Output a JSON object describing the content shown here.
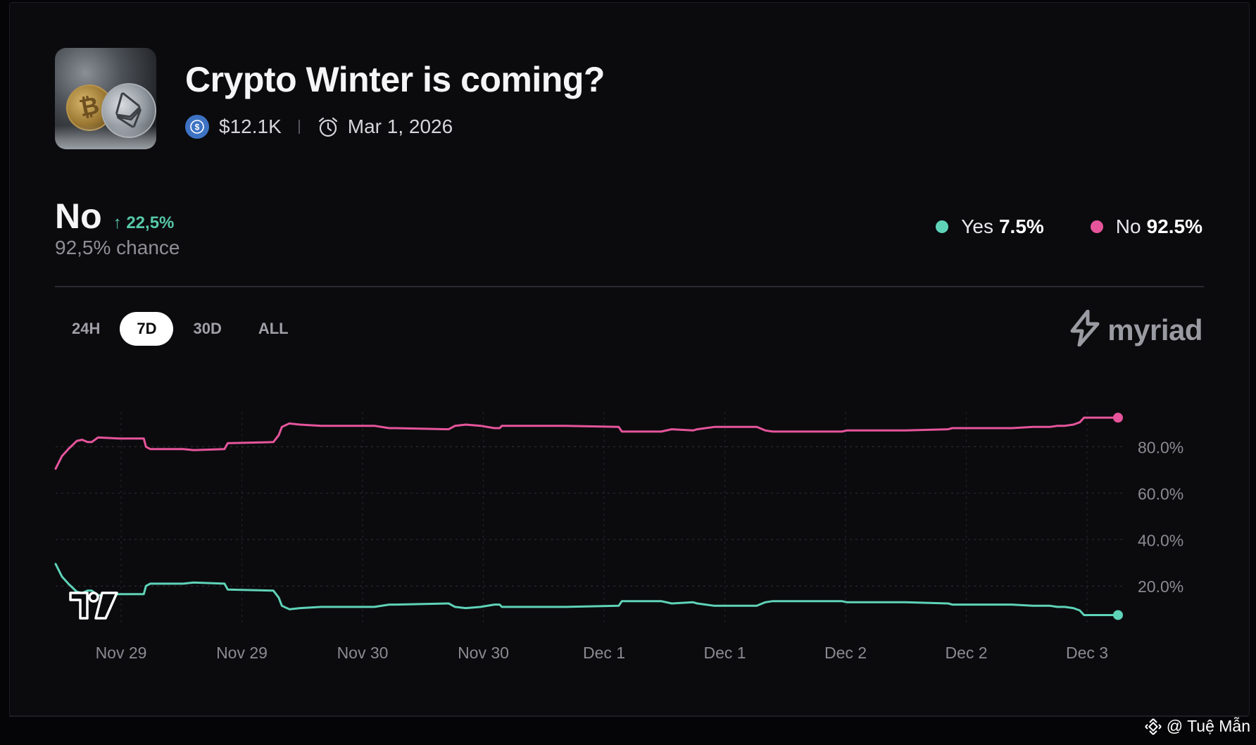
{
  "market": {
    "title": "Crypto Winter is coming?",
    "volume": "$12.1K",
    "end_date": "Mar 1, 2026",
    "thumbnail_icon": "crypto-coins-image"
  },
  "outcome": {
    "name": "No",
    "change": "22,5%",
    "chance": "92,5% chance"
  },
  "legend": [
    {
      "label": "Yes",
      "value": "7.5%",
      "color": "#5fd3b8"
    },
    {
      "label": "No",
      "value": "92.5%",
      "color": "#e6559c"
    }
  ],
  "ranges": [
    "24H",
    "7D",
    "30D",
    "ALL"
  ],
  "active_range": "7D",
  "brand": "myriad",
  "watermark": "@ Tuệ Mẫn",
  "colors": {
    "yes": "#5fd3b8",
    "no": "#e6559c",
    "up": "#56c7a7",
    "background": "#0b0b0e"
  },
  "chart_data": {
    "type": "line",
    "x_tick_labels": [
      "Nov 29",
      "Nov 29",
      "Nov 30",
      "Nov 30",
      "Dec 1",
      "Dec 1",
      "Dec 2",
      "Dec 2",
      "Dec 3"
    ],
    "y_tick_labels": [
      "20.0%",
      "40.0%",
      "60.0%",
      "80.0%"
    ],
    "y_ticks": [
      20,
      40,
      60,
      80
    ],
    "ylim": [
      0,
      100
    ],
    "xlim": [
      0,
      100
    ],
    "grid": true,
    "series": [
      {
        "name": "No",
        "color": "#e6559c",
        "x": [
          0,
          0.6,
          1.2,
          2,
          2.5,
          3,
          3.4,
          4,
          6,
          8.3,
          8.5,
          8.9,
          12,
          13,
          15.9,
          16.2,
          20.5,
          21,
          21.3,
          22,
          23,
          25,
          30,
          31.4,
          32,
          37,
          37.6,
          38.6,
          40,
          41.3,
          41.8,
          42,
          45,
          48,
          53,
          53.3,
          53.8,
          57,
          58,
          60,
          60.4,
          62,
          64,
          66,
          66.8,
          67.5,
          70,
          74,
          74.5,
          75,
          80,
          84,
          84.4,
          88,
          90,
          92,
          93.6,
          94.3,
          95,
          95.8,
          96.4,
          96.8,
          98,
          100
        ],
        "y": [
          70.5,
          76,
          79,
          82.5,
          83,
          82,
          82,
          84,
          83.5,
          83.5,
          80,
          79,
          79,
          78.5,
          79,
          81.5,
          82,
          85,
          88.5,
          90,
          89.5,
          89,
          89,
          88,
          88,
          87.5,
          89,
          89.5,
          89,
          88,
          88,
          89,
          89,
          89,
          88.5,
          86.5,
          86.5,
          86.5,
          87.5,
          87,
          87.5,
          88.5,
          88.5,
          88.5,
          87,
          86.5,
          86.5,
          86.5,
          87,
          87,
          87,
          87.5,
          88,
          88,
          88,
          88.5,
          88.5,
          89,
          89,
          89.5,
          90.5,
          92.5,
          92.5,
          92.5
        ]
      },
      {
        "name": "Yes",
        "color": "#5fd3b8",
        "x": [
          0,
          0.6,
          1.2,
          2,
          2.5,
          3,
          3.4,
          4,
          6,
          8.3,
          8.5,
          8.9,
          12,
          13,
          15.9,
          16.2,
          20.5,
          21,
          21.3,
          22,
          23,
          25,
          30,
          31.4,
          32,
          37,
          37.6,
          38.6,
          40,
          41.3,
          41.8,
          42,
          45,
          48,
          53,
          53.3,
          53.8,
          57,
          58,
          60,
          60.4,
          62,
          64,
          66,
          66.8,
          67.5,
          70,
          74,
          74.5,
          75,
          80,
          84,
          84.4,
          88,
          90,
          92,
          93.6,
          94.3,
          95,
          95.8,
          96.4,
          96.8,
          98,
          100
        ],
        "y": [
          29.5,
          24,
          21,
          17.5,
          17,
          18,
          18,
          16,
          16.5,
          16.5,
          20,
          21,
          21,
          21.5,
          21,
          18.5,
          18,
          15,
          11.5,
          10,
          10.5,
          11,
          11,
          12,
          12,
          12.5,
          11,
          10.5,
          11,
          12,
          12,
          11,
          11,
          11,
          11.5,
          13.5,
          13.5,
          13.5,
          12.5,
          13,
          12.5,
          11.5,
          11.5,
          11.5,
          13,
          13.5,
          13.5,
          13.5,
          13,
          13,
          13,
          12.5,
          12,
          12,
          12,
          11.5,
          11.5,
          11,
          11,
          10.5,
          9.5,
          7.5,
          7.5,
          7.5
        ]
      }
    ]
  }
}
